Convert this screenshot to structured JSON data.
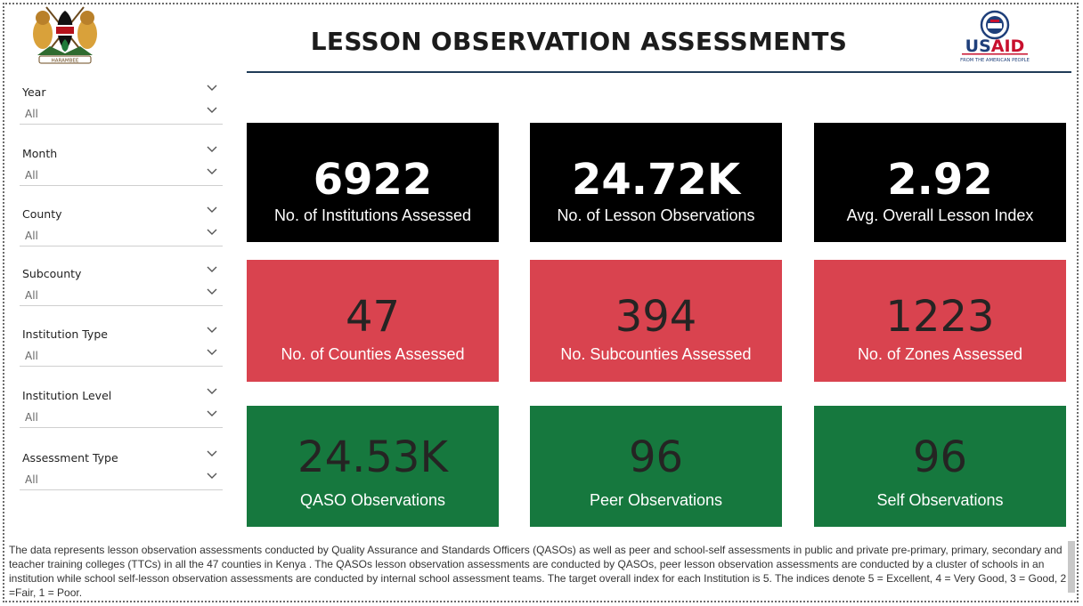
{
  "header": {
    "title": "LESSON OBSERVATION ASSESSMENTS",
    "usaid_logo_text": "USAID",
    "usaid_tagline": "FROM THE AMERICAN PEOPLE",
    "coat_of_arms_motto": "HARAMBEE",
    "accent_color": "#1f3b57"
  },
  "filters": [
    {
      "label": "Year",
      "value": "All"
    },
    {
      "label": "Month",
      "value": "All"
    },
    {
      "label": "County",
      "value": "All"
    },
    {
      "label": "Subcounty",
      "value": "All"
    },
    {
      "label": "Institution Type",
      "value": "All"
    },
    {
      "label": "Institution Level",
      "value": "All"
    },
    {
      "label": "Assessment Type",
      "value": "All"
    }
  ],
  "cards": [
    {
      "value": "6922",
      "label": "No. of Institutions Assessed",
      "color": "#000000"
    },
    {
      "value": "24.72K",
      "label": "No. of Lesson Observations",
      "color": "#000000"
    },
    {
      "value": "2.92",
      "label": "Avg. Overall Lesson Index",
      "color": "#000000"
    },
    {
      "value": "47",
      "label": "No. of Counties Assessed",
      "color": "#d9434f"
    },
    {
      "value": "394",
      "label": "No. Subcounties Assessed",
      "color": "#d9434f"
    },
    {
      "value": "1223",
      "label": "No. of Zones Assessed",
      "color": "#d9434f"
    },
    {
      "value": "24.53K",
      "label": "QASO Observations",
      "color": "#16783e"
    },
    {
      "value": "96",
      "label": "Peer Observations",
      "color": "#16783e"
    },
    {
      "value": "96",
      "label": "Self Observations",
      "color": "#16783e"
    }
  ],
  "footer": {
    "description": "The data represents lesson observation assessments conducted by Quality Assurance and Standards Officers (QASOs) as well as peer and school-self assessments in public and private pre-primary, primary, secondary and teacher training colleges (TTCs) in all the 47 counties in Kenya . The QASOs lesson observation assessments are conducted by QASOs, peer lesson observation assessments are conducted by a cluster of schools in an institution while school self-lesson observation assessments are conducted by internal school assessment teams. The target overall index for each Institution is 5. The indices denote 5 = Excellent, 4 = Very Good, 3 = Good, 2 =Fair, 1 = Poor."
  }
}
